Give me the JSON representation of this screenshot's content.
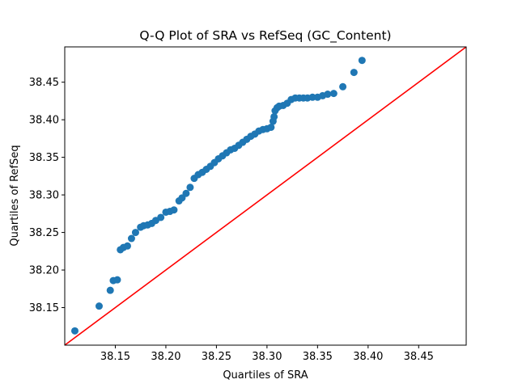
{
  "chart_data": {
    "type": "scatter",
    "title": "Q-Q Plot of SRA vs RefSeq (GC_Content)",
    "xlabel": "Quartiles of SRA",
    "ylabel": "Quartiles of RefSeq",
    "xlim": [
      38.1,
      38.497
    ],
    "ylim": [
      38.1,
      38.497
    ],
    "xticks": [
      "38.15",
      "38.20",
      "38.25",
      "38.30",
      "38.35",
      "38.40",
      "38.45"
    ],
    "yticks": [
      "38.15",
      "38.20",
      "38.25",
      "38.30",
      "38.35",
      "38.40",
      "38.45"
    ],
    "grid": false,
    "legend": "none",
    "colors": {
      "points": "#1f77b4",
      "reference_line": "#ff0000"
    },
    "reference_line": {
      "slope": 1,
      "intercept": 0
    },
    "series": [
      {
        "x": [
          38.11,
          38.134,
          38.145,
          38.148,
          38.152,
          38.155,
          38.158,
          38.162,
          38.166,
          38.17,
          38.175,
          38.178,
          38.182,
          38.186,
          38.19,
          38.195,
          38.2,
          38.204,
          38.208,
          38.213,
          38.216,
          38.22,
          38.224,
          38.228,
          38.232,
          38.236,
          38.24,
          38.244,
          38.248,
          38.252,
          38.256,
          38.26,
          38.264,
          38.268,
          38.272,
          38.276,
          38.28,
          38.284,
          38.288,
          38.292,
          38.296,
          38.3,
          38.304,
          38.306,
          38.307,
          38.308,
          38.31,
          38.312,
          38.316,
          38.32,
          38.324,
          38.328,
          38.332,
          38.336,
          38.34,
          38.345,
          38.35,
          38.355,
          38.36,
          38.366,
          38.375,
          38.386,
          38.394
        ],
        "y": [
          38.119,
          38.152,
          38.173,
          38.186,
          38.187,
          38.227,
          38.23,
          38.232,
          38.242,
          38.25,
          38.257,
          38.259,
          38.26,
          38.262,
          38.266,
          38.27,
          38.277,
          38.278,
          38.28,
          38.292,
          38.296,
          38.302,
          38.31,
          38.322,
          38.327,
          38.33,
          38.334,
          38.338,
          38.343,
          38.348,
          38.352,
          38.356,
          38.36,
          38.362,
          38.366,
          38.37,
          38.374,
          38.378,
          38.381,
          38.385,
          38.387,
          38.388,
          38.39,
          38.398,
          38.404,
          38.412,
          38.416,
          38.418,
          38.419,
          38.422,
          38.427,
          38.429,
          38.429,
          38.429,
          38.429,
          38.43,
          38.43,
          38.432,
          38.434,
          38.435,
          38.444,
          38.463,
          38.479
        ]
      }
    ]
  }
}
